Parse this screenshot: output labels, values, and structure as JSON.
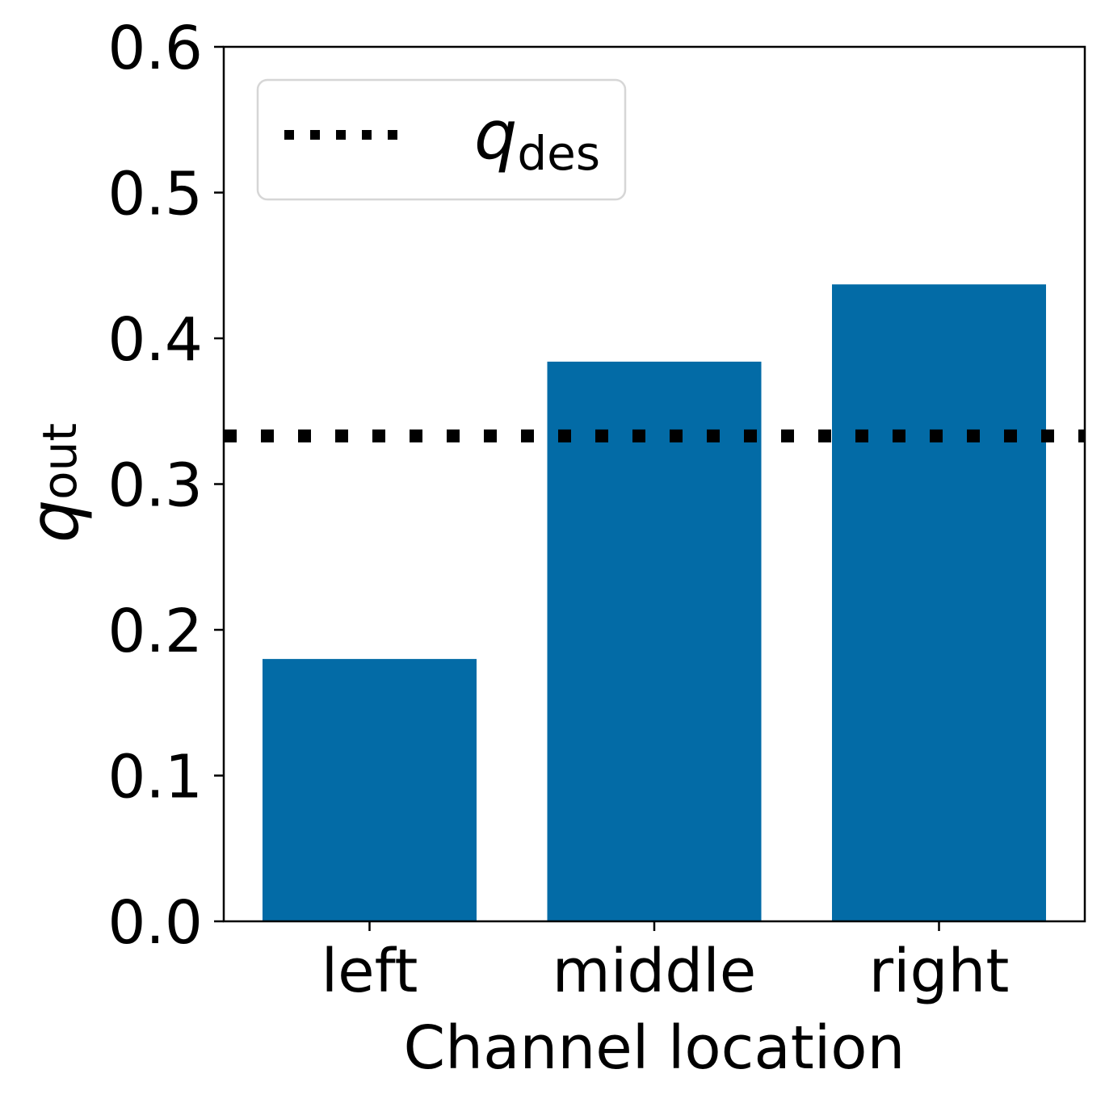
{
  "chart_data": {
    "type": "bar",
    "categories": [
      "left",
      "middle",
      "right"
    ],
    "values": [
      0.18,
      0.384,
      0.437
    ],
    "bar_color": "#036ba6",
    "xlabel": "Channel location",
    "ylabel": {
      "base": "q",
      "sub": "out"
    },
    "ylim": [
      0,
      0.6
    ],
    "yticks": [
      "0.0",
      "0.1",
      "0.2",
      "0.3",
      "0.4",
      "0.5",
      "0.6"
    ],
    "grid": false,
    "reference_line": {
      "value": 0.333,
      "style": "dotted",
      "color": "#000000",
      "label": {
        "base": "q",
        "sub": "des"
      }
    },
    "legend": {
      "placement": "upper-left"
    }
  }
}
